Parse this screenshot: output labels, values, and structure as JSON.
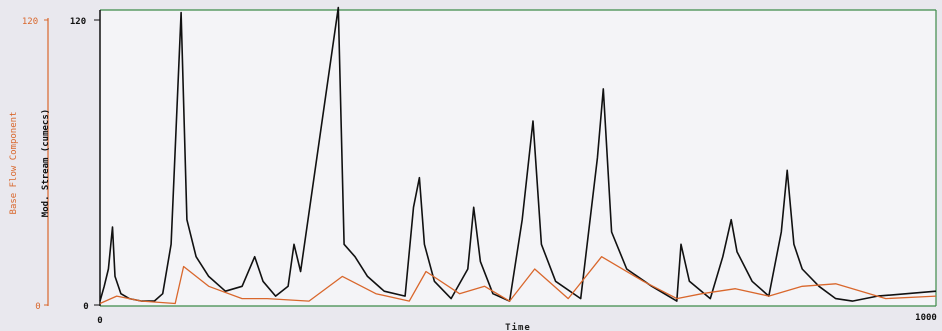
{
  "chart_data": {
    "type": "line",
    "title": "",
    "xlabel": "Time",
    "xlim": [
      0,
      1000
    ],
    "x_ticks": [
      "0",
      "1000"
    ],
    "axes": {
      "left_outer": {
        "label": "Base Flow Component",
        "ylim": [
          0,
          120
        ],
        "ticks": [
          "120",
          "0"
        ],
        "color": "#d9672c"
      },
      "left_inner": {
        "label": "Mod. Stream (cumecs)",
        "ylim": [
          0,
          120
        ],
        "ticks": [
          "120",
          "0"
        ],
        "color": "#111111"
      }
    },
    "series": [
      {
        "color": "#111111",
        "points": [
          [
            0,
            2
          ],
          [
            5,
            8
          ],
          [
            10,
            15
          ],
          [
            15,
            32
          ],
          [
            18,
            12
          ],
          [
            25,
            5
          ],
          [
            35,
            3
          ],
          [
            50,
            2
          ],
          [
            65,
            2
          ],
          [
            75,
            5
          ],
          [
            85,
            25
          ],
          [
            97,
            119
          ],
          [
            104,
            35
          ],
          [
            115,
            20
          ],
          [
            130,
            12
          ],
          [
            150,
            6
          ],
          [
            170,
            8
          ],
          [
            185,
            20
          ],
          [
            195,
            10
          ],
          [
            210,
            4
          ],
          [
            225,
            8
          ],
          [
            232,
            25
          ],
          [
            240,
            14
          ],
          [
            285,
            121
          ],
          [
            292,
            25
          ],
          [
            305,
            20
          ],
          [
            320,
            12
          ],
          [
            340,
            6
          ],
          [
            365,
            4
          ],
          [
            375,
            40
          ],
          [
            382,
            52
          ],
          [
            388,
            25
          ],
          [
            400,
            10
          ],
          [
            420,
            3
          ],
          [
            440,
            15
          ],
          [
            447,
            40
          ],
          [
            455,
            18
          ],
          [
            470,
            5
          ],
          [
            490,
            2
          ],
          [
            505,
            35
          ],
          [
            518,
            75
          ],
          [
            528,
            25
          ],
          [
            545,
            10
          ],
          [
            575,
            3
          ],
          [
            595,
            60
          ],
          [
            602,
            88
          ],
          [
            612,
            30
          ],
          [
            630,
            15
          ],
          [
            660,
            8
          ],
          [
            690,
            2
          ],
          [
            695,
            25
          ],
          [
            705,
            10
          ],
          [
            730,
            3
          ],
          [
            745,
            20
          ],
          [
            755,
            35
          ],
          [
            762,
            22
          ],
          [
            780,
            10
          ],
          [
            800,
            4
          ],
          [
            815,
            30
          ],
          [
            822,
            55
          ],
          [
            830,
            25
          ],
          [
            840,
            15
          ],
          [
            860,
            8
          ],
          [
            880,
            3
          ],
          [
            900,
            2
          ],
          [
            930,
            4
          ],
          [
            1000,
            6
          ]
        ]
      },
      {
        "color": "#d9672c",
        "points": [
          [
            0,
            1
          ],
          [
            20,
            4
          ],
          [
            50,
            2
          ],
          [
            90,
            1
          ],
          [
            100,
            16
          ],
          [
            130,
            8
          ],
          [
            170,
            3
          ],
          [
            200,
            3
          ],
          [
            250,
            2
          ],
          [
            290,
            12
          ],
          [
            330,
            5
          ],
          [
            370,
            2
          ],
          [
            390,
            14
          ],
          [
            430,
            5
          ],
          [
            460,
            8
          ],
          [
            490,
            2
          ],
          [
            520,
            15
          ],
          [
            560,
            3
          ],
          [
            600,
            20
          ],
          [
            650,
            10
          ],
          [
            690,
            3
          ],
          [
            720,
            5
          ],
          [
            760,
            7
          ],
          [
            800,
            4
          ],
          [
            840,
            8
          ],
          [
            880,
            9
          ],
          [
            940,
            3
          ],
          [
            1000,
            4
          ]
        ]
      }
    ]
  }
}
